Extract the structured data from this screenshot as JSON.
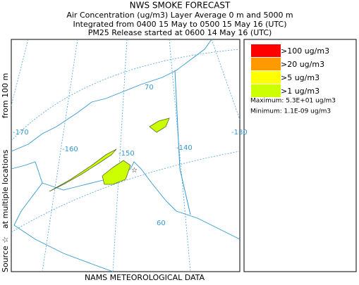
{
  "header": {
    "title": "NWS SMOKE FORECAST",
    "lines": [
      "Air Concentration (ug/m3) Layer Average    0 m and  5000 m",
      "Integrated from 0400 15 May to 0500 15 May 16 (UTC)",
      "PM25 Release started at 0600 14 May 16 (UTC)"
    ]
  },
  "side_labels": [
    "Source ☆",
    "at multiple locations",
    "from   100 m"
  ],
  "footer": "NAMS METEOROLOGICAL DATA",
  "legend": {
    "items": [
      {
        "label": ">100 ug/m3",
        "color": "#ff0000"
      },
      {
        "label": ">20 ug/m3",
        "color": "#ff9900"
      },
      {
        "label": ">5 ug/m3",
        "color": "#ffff00"
      },
      {
        "label": ">1 ug/m3",
        "color": "#ccff00"
      }
    ],
    "maximum": "Maximum: 5.3E+01 ug/m3",
    "minimum": "Minimum: 1.1E-09 ug/m3"
  },
  "map_labels": [
    "-170",
    "-160",
    "-150",
    "-140",
    "-130",
    "70",
    "60"
  ]
}
